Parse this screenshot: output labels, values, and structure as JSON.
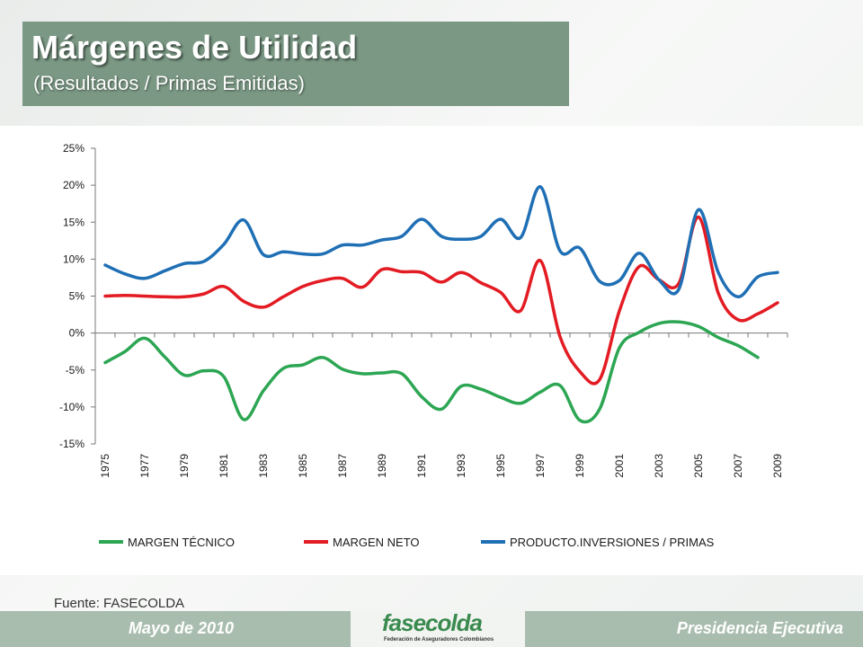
{
  "slide": {
    "title": "Márgenes de Utilidad",
    "subtitle": "(Resultados / Primas Emitidas)",
    "source": "Fuente: FASECOLDA"
  },
  "footer": {
    "date": "Mayo de 2010",
    "org": "Presidencia Ejecutiva",
    "logo_name": "fasecolda",
    "logo_tagline": "Federación de Aseguradores Colombianos"
  },
  "chart_data": {
    "type": "line",
    "x": [
      1975,
      1976,
      1977,
      1978,
      1979,
      1980,
      1981,
      1982,
      1983,
      1984,
      1985,
      1986,
      1987,
      1988,
      1989,
      1990,
      1991,
      1992,
      1993,
      1994,
      1995,
      1996,
      1997,
      1998,
      1999,
      2000,
      2001,
      2002,
      2003,
      2004,
      2005,
      2006,
      2007,
      2008,
      2009
    ],
    "x_tick_labels": [
      "1975",
      "1977",
      "1979",
      "1981",
      "1983",
      "1985",
      "1987",
      "1989",
      "1991",
      "1993",
      "1995",
      "1997",
      "1999",
      "2001",
      "2003",
      "2005",
      "2007",
      "2009"
    ],
    "y_tick_labels": [
      "25%",
      "20%",
      "15%",
      "10%",
      "5%",
      "0%",
      "-5%",
      "-10%",
      "-15%"
    ],
    "ylim": [
      -15,
      25
    ],
    "grid": false,
    "legend_position": "bottom",
    "series": [
      {
        "name": "MARGEN TÉCNICO",
        "color": "#2ca653",
        "values": [
          -4.0,
          -2.5,
          -0.7,
          -3.2,
          -5.7,
          -5.1,
          -5.9,
          -11.7,
          -7.8,
          -4.8,
          -4.3,
          -3.3,
          -4.9,
          -5.5,
          -5.4,
          -5.5,
          -8.6,
          -10.3,
          -7.2,
          -7.6,
          -8.7,
          -9.5,
          -8.0,
          -7.1,
          -11.8,
          -10.3,
          -2.0,
          0.1,
          1.3,
          1.5,
          0.9,
          -0.6,
          -1.7,
          -3.3,
          null
        ]
      },
      {
        "name": "MARGEN NETO",
        "color": "#e31b23",
        "values": [
          5.0,
          5.1,
          5.0,
          4.9,
          4.9,
          5.3,
          6.3,
          4.3,
          3.5,
          4.9,
          6.3,
          7.1,
          7.4,
          6.2,
          8.6,
          8.3,
          8.2,
          6.9,
          8.2,
          6.8,
          5.5,
          3.0,
          9.8,
          -0.5,
          -5.2,
          -6.3,
          3.0,
          9.0,
          7.2,
          6.7,
          15.7,
          5.4,
          1.8,
          2.6,
          4.1
        ]
      },
      {
        "name": "PRODUCTO.INVERSIONES / PRIMAS",
        "color": "#1f6fb5",
        "values": [
          9.2,
          8.0,
          7.4,
          8.4,
          9.4,
          9.7,
          12.0,
          15.3,
          10.6,
          11.0,
          10.7,
          10.7,
          11.9,
          11.9,
          12.6,
          13.1,
          15.4,
          13.1,
          12.7,
          13.1,
          15.4,
          12.9,
          19.8,
          11.1,
          11.5,
          7.0,
          7.1,
          10.8,
          7.2,
          5.9,
          16.7,
          8.2,
          4.9,
          7.6,
          8.2
        ]
      }
    ]
  }
}
